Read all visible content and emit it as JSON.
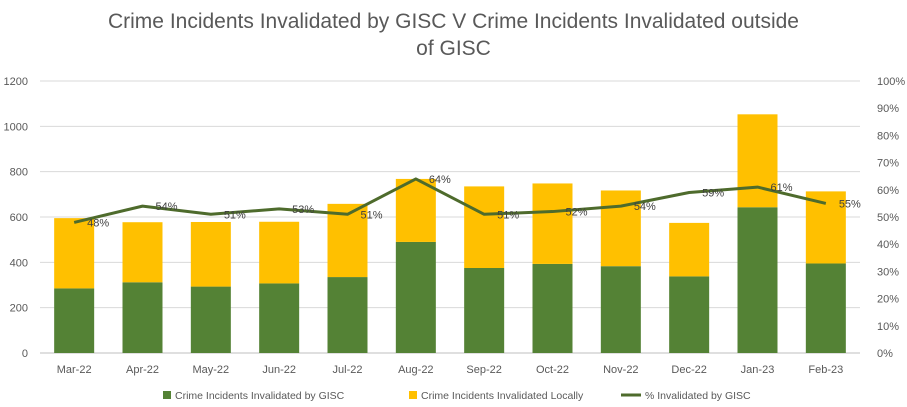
{
  "chart_data": {
    "type": "bar",
    "subtype": "stacked-bar-with-line",
    "title_lines": [
      "Crime Incidents Invalidated by GISC V Crime Incidents Invalidated outside",
      "of GISC"
    ],
    "categories": [
      "Mar-22",
      "Apr-22",
      "May-22",
      "Jun-22",
      "Jul-22",
      "Aug-22",
      "Sep-22",
      "Oct-22",
      "Nov-22",
      "Dec-22",
      "Jan-23",
      "Feb-23"
    ],
    "series": [
      {
        "name": "Crime Incidents Invalidated by GISC",
        "type": "bar",
        "axis": "left",
        "color": "#548235",
        "values": [
          285,
          312,
          293,
          307,
          335,
          490,
          375,
          393,
          383,
          338,
          643,
          395
        ]
      },
      {
        "name": "Crime Incidents Invalidated Locally",
        "type": "bar",
        "axis": "left",
        "color": "#FFC000",
        "values": [
          310,
          265,
          285,
          272,
          323,
          278,
          360,
          355,
          334,
          236,
          410,
          318
        ]
      },
      {
        "name": "% Invalidated by GISC",
        "type": "line",
        "axis": "right",
        "color": "#4E6B2C",
        "values": [
          48,
          54,
          51,
          53,
          51,
          64,
          51,
          52,
          54,
          59,
          61,
          55
        ],
        "labels": [
          "48%",
          "54%",
          "51%",
          "53%",
          "51%",
          "64%",
          "51%",
          "52%",
          "54%",
          "59%",
          "61%",
          "55%"
        ]
      }
    ],
    "y_left": {
      "min": 0,
      "max": 1200,
      "ticks": [
        "0",
        "200",
        "400",
        "600",
        "800",
        "1000",
        "1200"
      ]
    },
    "y_right": {
      "min": 0,
      "max": 100,
      "ticks": [
        "0%",
        "10%",
        "20%",
        "30%",
        "40%",
        "50%",
        "60%",
        "70%",
        "80%",
        "90%",
        "100%"
      ]
    },
    "grid": true,
    "legend_position": "bottom"
  }
}
